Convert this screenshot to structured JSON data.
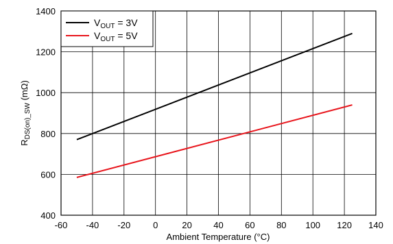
{
  "chart_data": {
    "type": "line",
    "xlabel": "Ambient Temperature (°C)",
    "ylabel": {
      "main": "R",
      "sub": "DS(on)_SW",
      "tail": " (mΩ)"
    },
    "xlim": [
      -60,
      140
    ],
    "ylim": [
      400,
      1400
    ],
    "xticks": [
      -60,
      -40,
      -20,
      0,
      20,
      40,
      60,
      80,
      100,
      120,
      140
    ],
    "yticks": [
      400,
      600,
      800,
      1000,
      1200,
      1400
    ],
    "xtick_labels": [
      "-60",
      "-40",
      "-20",
      "0",
      "20",
      "40",
      "60",
      "80",
      "100",
      "120",
      "140"
    ],
    "ytick_labels": [
      "400",
      "600",
      "800",
      "1000",
      "1200",
      "1400"
    ],
    "grid": true,
    "legend_position": "top-left",
    "series": [
      {
        "name": "V_OUT = 3V",
        "legend": {
          "main": "V",
          "sub": "OUT",
          "tail": " = 3V"
        },
        "color": "#000000",
        "x": [
          -50,
          125
        ],
        "y": [
          770,
          1290
        ]
      },
      {
        "name": "V_OUT = 5V",
        "legend": {
          "main": "V",
          "sub": "OUT",
          "tail": " = 5V"
        },
        "color": "#e8141b",
        "x": [
          -50,
          125
        ],
        "y": [
          585,
          940
        ]
      }
    ]
  }
}
